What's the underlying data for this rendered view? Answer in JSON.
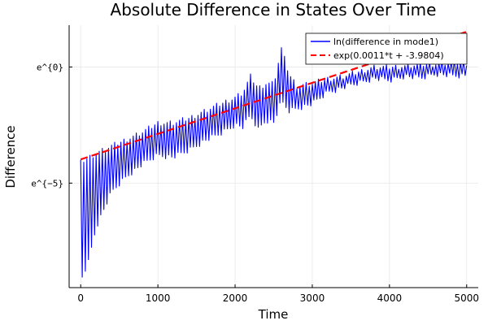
{
  "chart_data": {
    "type": "line",
    "title": "Absolute Difference in States Over Time",
    "xlabel": "Time",
    "ylabel": "Difference",
    "xlim": [
      -150,
      5150
    ],
    "ylim": [
      -9.5,
      1.8
    ],
    "x_ticks": [
      {
        "value": 0,
        "label": "0"
      },
      {
        "value": 1000,
        "label": "1000"
      },
      {
        "value": 2000,
        "label": "2000"
      },
      {
        "value": 3000,
        "label": "3000"
      },
      {
        "value": 4000,
        "label": "4000"
      },
      {
        "value": 5000,
        "label": "5000"
      }
    ],
    "y_ticks": [
      {
        "value": 0,
        "label": "e^{0}"
      },
      {
        "value": -5,
        "label": "e^{−5}"
      }
    ],
    "grid": true,
    "legend_position": "top-right",
    "colors": {
      "series_1": "#0000ff",
      "series_2": "#ff0000"
    },
    "series": [
      {
        "name": "ln(difference in mode1)",
        "style": "oscillating-line",
        "upper_envelope": {
          "x": [
            0,
            100,
            200,
            400,
            600,
            800,
            1000,
            1200,
            1400,
            1600,
            1800,
            2000,
            2100,
            2200,
            2300,
            2400,
            2500,
            2600,
            2700,
            2800,
            3000,
            3200,
            3400,
            3600,
            3800,
            4000,
            4200,
            4400,
            4600,
            4800,
            5000
          ],
          "y": [
            -4.0,
            -3.8,
            -3.6,
            -3.3,
            -3.0,
            -2.7,
            -2.3,
            -2.3,
            -2.1,
            -1.8,
            -1.5,
            -1.2,
            -1.0,
            -0.3,
            -0.8,
            -0.6,
            -0.6,
            0.9,
            -0.2,
            -0.7,
            -0.6,
            -0.4,
            -0.3,
            -0.1,
            0.1,
            0.1,
            0.15,
            0.2,
            0.25,
            0.3,
            0.3
          ]
        },
        "lower_envelope": {
          "x": [
            0,
            100,
            200,
            400,
            600,
            800,
            1000,
            1200,
            1400,
            1600,
            1800,
            2000,
            2100,
            2200,
            2300,
            2400,
            2500,
            2600,
            2700,
            2800,
            3000,
            3200,
            3400,
            3600,
            3800,
            4000,
            4200,
            4400,
            4600,
            4800,
            5000
          ],
          "y": [
            -9.3,
            -8.5,
            -7.0,
            -5.5,
            -4.8,
            -4.3,
            -3.9,
            -4.0,
            -3.7,
            -3.3,
            -3.0,
            -2.6,
            -2.7,
            -2.2,
            -2.8,
            -2.4,
            -2.5,
            -1.6,
            -2.0,
            -1.9,
            -1.7,
            -1.2,
            -1.0,
            -0.8,
            -0.6,
            -0.7,
            -0.5,
            -0.6,
            -0.4,
            -0.5,
            -0.5
          ]
        }
      },
      {
        "name": "exp(0.0011*t + -3.9804)",
        "style": "dashed",
        "x": [
          0,
          5000
        ],
        "y": [
          -3.9804,
          1.5196
        ]
      }
    ]
  }
}
